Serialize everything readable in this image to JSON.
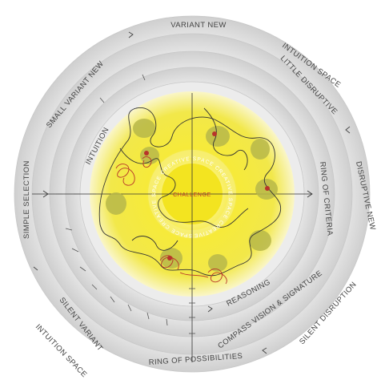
{
  "diagram": {
    "center_label": "CHALLENGE",
    "inner_ring_text": "SPACE CREATIVE SPACE CREATIVE SPACE CREATIVE SPACE CREATIVE",
    "labels": {
      "variant_new": "VARIANT NEW",
      "intuition_space_top": "INTUITION SPACE",
      "little_disruptive": "LITTLE DISRUPTIVE",
      "small_variant_new": "SMALL VARIANT NEW",
      "intuition": "INTUITION",
      "simple_selection": "SIMPLE SELECTION",
      "disruptive_new": "DISRUPTIVE NEW",
      "ring_of_criteria": "RING OF CRITERIA",
      "reasoning": "REASONING",
      "silent_disruption": "SILENT DISRUPTION",
      "compass_vision": "COMPASS VISION & SIGNATURE",
      "silent_variant": "SILENT VARIANT",
      "intuition_space_bottom": "INTUITION SPACE",
      "ring_of_possibilities": "RING OF POSSIBILITIES"
    },
    "colors": {
      "core_yellow": "#f5e400",
      "ring_gray": "#d9d9d9",
      "accent_red": "#b8342a",
      "blob_olive": "#b8b84a"
    }
  }
}
